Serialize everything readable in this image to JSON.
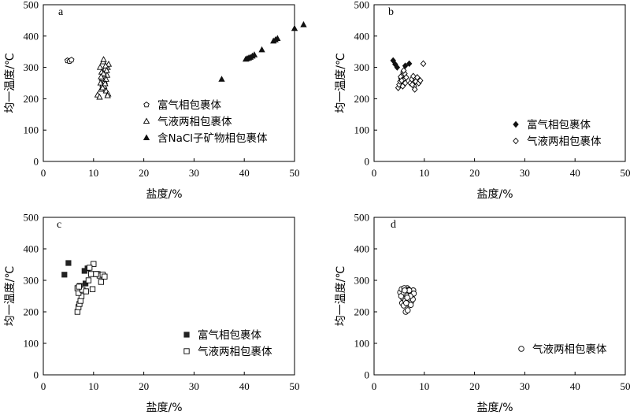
{
  "chart_data": [
    {
      "type": "scatter",
      "panel_label": "a",
      "xlabel": "盐度/%",
      "ylabel": "均一温度/℃",
      "xlim": [
        0,
        50
      ],
      "ylim": [
        0,
        500
      ],
      "xticks": [
        "0",
        "10",
        "20",
        "30",
        "40",
        "50"
      ],
      "yticks": [
        "0",
        "100",
        "200",
        "300",
        "400",
        "500"
      ],
      "legend_position": "middle-right",
      "series": [
        {
          "name": "富气相包裹体",
          "marker": "pentagon-open",
          "x": [
            4.8,
            5.2,
            5.6
          ],
          "y": [
            322,
            320,
            324
          ]
        },
        {
          "name": "气液两相包裹体",
          "marker": "triangle-open",
          "x": [
            10.8,
            11.2,
            11.5,
            11.8,
            12.0,
            12.2,
            12.4,
            12.6,
            12.8,
            13.0,
            11.6,
            11.9,
            12.3,
            12.7,
            11.4,
            12.1,
            12.5,
            12.9,
            11.7,
            12.4,
            11.3,
            12.0,
            12.6,
            11.5,
            12.2,
            12.8,
            12.0,
            11.8,
            12.5,
            12.3
          ],
          "y": [
            212,
            205,
            230,
            245,
            260,
            270,
            280,
            290,
            300,
            310,
            285,
            318,
            295,
            275,
            250,
            240,
            225,
            215,
            265,
            305,
            300,
            280,
            290,
            270,
            255,
            210,
            325,
            235,
            262,
            248
          ]
        },
        {
          "name": "含NaCl子矿物相包裹体",
          "marker": "triangle-filled",
          "x": [
            35.5,
            40.3,
            40.6,
            40.9,
            41.2,
            41.6,
            42.0,
            43.5,
            45.8,
            46.2,
            46.6,
            50.0,
            51.8
          ],
          "y": [
            262,
            326,
            328,
            330,
            332,
            336,
            340,
            356,
            384,
            388,
            392,
            424,
            436
          ]
        }
      ]
    },
    {
      "type": "scatter",
      "panel_label": "b",
      "xlabel": "盐度/%",
      "ylabel": "均一温度/℃",
      "xlim": [
        0,
        50
      ],
      "ylim": [
        0,
        500
      ],
      "xticks": [
        "0",
        "10",
        "20",
        "30",
        "40",
        "50"
      ],
      "yticks": [
        "0",
        "100",
        "200",
        "300",
        "400",
        "500"
      ],
      "legend_position": "middle-right",
      "series": [
        {
          "name": "富气相包裹体",
          "marker": "diamond-filled",
          "x": [
            3.8,
            4.2,
            4.6,
            6.2,
            7.0
          ],
          "y": [
            322,
            310,
            300,
            305,
            312
          ]
        },
        {
          "name": "气液两相包裹体",
          "marker": "diamond-open",
          "x": [
            4.8,
            5.0,
            5.2,
            5.4,
            5.6,
            5.8,
            6.0,
            6.2,
            5.3,
            5.7,
            6.1,
            5.5,
            7.2,
            7.5,
            7.8,
            8.0,
            8.3,
            8.6,
            8.9,
            9.2,
            7.6,
            8.1,
            9.8,
            5.9,
            6.4
          ],
          "y": [
            235,
            245,
            255,
            265,
            275,
            285,
            260,
            250,
            270,
            240,
            280,
            258,
            250,
            262,
            272,
            240,
            255,
            268,
            250,
            258,
            245,
            230,
            312,
            290,
            268
          ]
        }
      ]
    },
    {
      "type": "scatter",
      "panel_label": "c",
      "xlabel": "盐度/%",
      "ylabel": "均一温度/℃",
      "xlim": [
        0,
        50
      ],
      "ylim": [
        0,
        500
      ],
      "xticks": [
        "0",
        "10",
        "20",
        "30",
        "40",
        "50"
      ],
      "yticks": [
        "0",
        "100",
        "200",
        "300",
        "400",
        "500"
      ],
      "legend_position": "lower-right",
      "series": [
        {
          "name": "富气相包裹体",
          "marker": "square-filled",
          "x": [
            4.2,
            5.0,
            8.2,
            8.8,
            10.5,
            8.4
          ],
          "y": [
            318,
            355,
            330,
            338,
            320,
            290
          ]
        },
        {
          "name": "气液两相包裹体",
          "marker": "square-open",
          "x": [
            6.8,
            7.0,
            7.2,
            7.4,
            7.6,
            7.0,
            6.8,
            7.3,
            7.8,
            8.5,
            9.0,
            9.5,
            10.0,
            10.8,
            11.2,
            11.8,
            12.2,
            9.8,
            10.5,
            11.5,
            9.2,
            7.1
          ],
          "y": [
            200,
            215,
            225,
            235,
            250,
            260,
            275,
            282,
            270,
            265,
            300,
            320,
            352,
            320,
            315,
            318,
            312,
            272,
            320,
            295,
            340,
            280
          ]
        }
      ]
    },
    {
      "type": "scatter",
      "panel_label": "d",
      "xlabel": "盐度/%",
      "ylabel": "均一温度/℃",
      "xlim": [
        0,
        50
      ],
      "ylim": [
        0,
        500
      ],
      "xticks": [
        "0",
        "10",
        "20",
        "30",
        "40",
        "50"
      ],
      "yticks": [
        "0",
        "100",
        "200",
        "300",
        "400",
        "500"
      ],
      "legend_position": "lower-right",
      "series": [
        {
          "name": "气液两相包裹体",
          "marker": "circle-open",
          "x": [
            5.2,
            5.5,
            5.8,
            6.0,
            6.2,
            6.5,
            6.8,
            7.0,
            7.2,
            7.5,
            7.8,
            5.6,
            6.1,
            6.6,
            7.1,
            7.6,
            5.9,
            6.4,
            6.9,
            7.4,
            6.3,
            6.7,
            5.7,
            7.3,
            6.0,
            6.9,
            7.7,
            5.4,
            6.2,
            7.0,
            6.5,
            6.8,
            7.9,
            5.9,
            6.4,
            7.2,
            6.1,
            6.6
          ],
          "y": [
            262,
            272,
            255,
            248,
            240,
            232,
            225,
            250,
            262,
            245,
            268,
            228,
            265,
            275,
            238,
            255,
            220,
            258,
            270,
            232,
            200,
            205,
            245,
            222,
            275,
            262,
            240,
            250,
            235,
            268,
            252,
            242,
            258,
            262,
            228,
            250,
            268,
            245
          ]
        }
      ]
    }
  ]
}
